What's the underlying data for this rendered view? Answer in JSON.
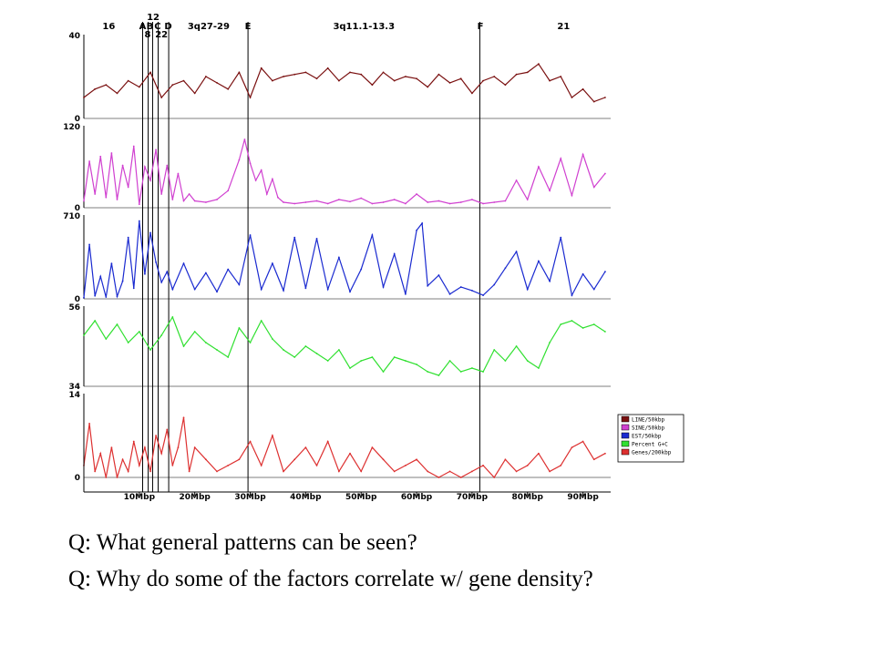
{
  "chart_data": {
    "type": "line",
    "x_unit": "Mbp",
    "xlim": [
      0,
      95
    ],
    "x_ticks": [
      {
        "value": 10,
        "label": "10Mbp"
      },
      {
        "value": 20,
        "label": "20Mbp"
      },
      {
        "value": 30,
        "label": "30Mbp"
      },
      {
        "value": 40,
        "label": "40Mbp"
      },
      {
        "value": 50,
        "label": "50Mbp"
      },
      {
        "value": 60,
        "label": "60Mbp"
      },
      {
        "value": 70,
        "label": "70Mbp"
      },
      {
        "value": 80,
        "label": "80Mbp"
      },
      {
        "value": 90,
        "label": "90Mbp"
      }
    ],
    "band_labels": [
      {
        "label": "16",
        "x": 4.5,
        "row": 2
      },
      {
        "label": "A",
        "x": 10.6,
        "row": 2
      },
      {
        "label": "12",
        "x": 12.5,
        "row": 1
      },
      {
        "label": "B",
        "x": 11.9,
        "row": 2
      },
      {
        "label": "C",
        "x": 13.3,
        "row": 2
      },
      {
        "label": "D",
        "x": 15.2,
        "row": 2
      },
      {
        "label": "8",
        "x": 11.5,
        "row": 3
      },
      {
        "label": "22",
        "x": 14.0,
        "row": 3
      },
      {
        "label": "3q27-29",
        "x": 22.5,
        "row": 2
      },
      {
        "label": "E",
        "x": 29.6,
        "row": 2
      },
      {
        "label": "3q11.1-13.3",
        "x": 50.5,
        "row": 2
      },
      {
        "label": "F",
        "x": 71.5,
        "row": 2
      },
      {
        "label": "21",
        "x": 86.5,
        "row": 2
      }
    ],
    "markers": [
      10.6,
      11.6,
      12.4,
      13.4,
      15.3,
      29.6,
      71.4
    ],
    "series": [
      {
        "name": "LINE/50kbp",
        "color": "#7a1010",
        "ylim": [
          0,
          40
        ],
        "y_ticks": [
          "40",
          "0"
        ],
        "x": [
          0,
          2,
          4,
          6,
          8,
          10,
          12,
          14,
          16,
          18,
          20,
          22,
          24,
          26,
          28,
          30,
          32,
          34,
          36,
          38,
          40,
          42,
          44,
          46,
          48,
          50,
          52,
          54,
          56,
          58,
          60,
          62,
          64,
          66,
          68,
          70,
          72,
          74,
          76,
          78,
          80,
          82,
          84,
          86,
          88,
          90,
          92,
          94
        ],
        "values": [
          10,
          14,
          16,
          12,
          18,
          15,
          22,
          10,
          16,
          18,
          12,
          20,
          17,
          14,
          22,
          10,
          24,
          18,
          20,
          21,
          22,
          19,
          24,
          18,
          22,
          21,
          16,
          22,
          18,
          20,
          19,
          15,
          21,
          17,
          19,
          12,
          18,
          20,
          16,
          21,
          22,
          26,
          18,
          20,
          10,
          14,
          8,
          10
        ]
      },
      {
        "name": "SINE/50kbp",
        "color": "#d040d0",
        "ylim": [
          0,
          120
        ],
        "y_ticks": [
          "120",
          "0"
        ],
        "x": [
          0,
          1,
          2,
          3,
          4,
          5,
          6,
          7,
          8,
          9,
          10,
          11,
          12,
          13,
          14,
          15,
          16,
          17,
          18,
          19,
          20,
          22,
          24,
          26,
          28,
          29,
          30,
          31,
          32,
          33,
          34,
          35,
          36,
          38,
          40,
          42,
          44,
          46,
          48,
          50,
          52,
          54,
          56,
          58,
          60,
          62,
          64,
          66,
          68,
          70,
          72,
          74,
          76,
          78,
          80,
          82,
          84,
          86,
          88,
          90,
          92,
          94
        ],
        "values": [
          10,
          68,
          20,
          75,
          15,
          80,
          12,
          62,
          30,
          90,
          5,
          60,
          40,
          85,
          20,
          62,
          12,
          50,
          10,
          20,
          10,
          8,
          12,
          25,
          70,
          100,
          65,
          40,
          55,
          20,
          42,
          15,
          8,
          6,
          8,
          10,
          6,
          12,
          9,
          14,
          6,
          8,
          12,
          6,
          20,
          8,
          10,
          6,
          8,
          12,
          6,
          8,
          10,
          40,
          12,
          60,
          25,
          72,
          18,
          78,
          30,
          50
        ]
      },
      {
        "name": "EST/50kbp",
        "color": "#1a2ad0",
        "ylim": [
          0,
          710
        ],
        "y_ticks": [
          "710",
          "0"
        ],
        "x": [
          0,
          1,
          2,
          3,
          4,
          5,
          6,
          7,
          8,
          9,
          10,
          11,
          12,
          13,
          14,
          15,
          16,
          18,
          20,
          22,
          24,
          26,
          28,
          30,
          32,
          34,
          36,
          38,
          40,
          42,
          44,
          46,
          48,
          50,
          52,
          54,
          56,
          58,
          60,
          61,
          62,
          64,
          66,
          68,
          70,
          72,
          74,
          76,
          78,
          80,
          82,
          84,
          86,
          88,
          90,
          92,
          94
        ],
        "values": [
          10,
          460,
          25,
          190,
          15,
          300,
          20,
          150,
          520,
          90,
          660,
          210,
          560,
          310,
          140,
          230,
          80,
          300,
          80,
          220,
          60,
          250,
          120,
          540,
          80,
          300,
          70,
          520,
          90,
          510,
          80,
          350,
          60,
          250,
          540,
          100,
          380,
          40,
          580,
          640,
          110,
          200,
          40,
          100,
          70,
          30,
          120,
          260,
          400,
          80,
          320,
          150,
          520,
          30,
          210,
          80,
          230
        ]
      },
      {
        "name": "Percent G+C",
        "color": "#30e030",
        "ylim": [
          34,
          56
        ],
        "y_ticks": [
          "56",
          "34"
        ],
        "x": [
          0,
          2,
          4,
          6,
          8,
          10,
          12,
          14,
          16,
          18,
          20,
          22,
          24,
          26,
          28,
          30,
          32,
          34,
          36,
          38,
          40,
          42,
          44,
          46,
          48,
          50,
          52,
          54,
          56,
          58,
          60,
          62,
          64,
          66,
          68,
          70,
          72,
          74,
          76,
          78,
          80,
          82,
          84,
          86,
          88,
          90,
          92,
          94
        ],
        "values": [
          48,
          52,
          47,
          51,
          46,
          49,
          44,
          48,
          53,
          45,
          49,
          46,
          44,
          42,
          50,
          46,
          52,
          47,
          44,
          42,
          45,
          43,
          41,
          44,
          39,
          41,
          42,
          38,
          42,
          41,
          40,
          38,
          37,
          41,
          38,
          39,
          38,
          44,
          41,
          45,
          41,
          39,
          46,
          51,
          52,
          50,
          51,
          49
        ]
      },
      {
        "name": "Genes/200kbp",
        "color": "#dd3030",
        "ylim": [
          0,
          14
        ],
        "y_ticks": [
          "14",
          "0"
        ],
        "x": [
          0,
          1,
          2,
          3,
          4,
          5,
          6,
          7,
          8,
          9,
          10,
          11,
          12,
          13,
          14,
          15,
          16,
          17,
          18,
          19,
          20,
          22,
          24,
          26,
          28,
          30,
          32,
          34,
          36,
          38,
          40,
          42,
          44,
          46,
          48,
          50,
          52,
          54,
          56,
          58,
          60,
          62,
          64,
          66,
          68,
          70,
          72,
          74,
          76,
          78,
          80,
          82,
          84,
          86,
          88,
          90,
          92,
          94
        ],
        "values": [
          2,
          9,
          1,
          4,
          0,
          5,
          0,
          3,
          1,
          6,
          2,
          5,
          1,
          7,
          4,
          8,
          2,
          5,
          10,
          1,
          5,
          3,
          1,
          2,
          3,
          6,
          2,
          7,
          1,
          3,
          5,
          2,
          6,
          1,
          4,
          1,
          5,
          3,
          1,
          2,
          3,
          1,
          0,
          1,
          0,
          1,
          2,
          0,
          3,
          1,
          2,
          4,
          1,
          2,
          5,
          6,
          3,
          4
        ]
      }
    ],
    "legend_placement": "right"
  },
  "questions": [
    "Q: What general patterns can be seen?",
    "Q: Why do some of the factors correlate w/ gene density?"
  ]
}
